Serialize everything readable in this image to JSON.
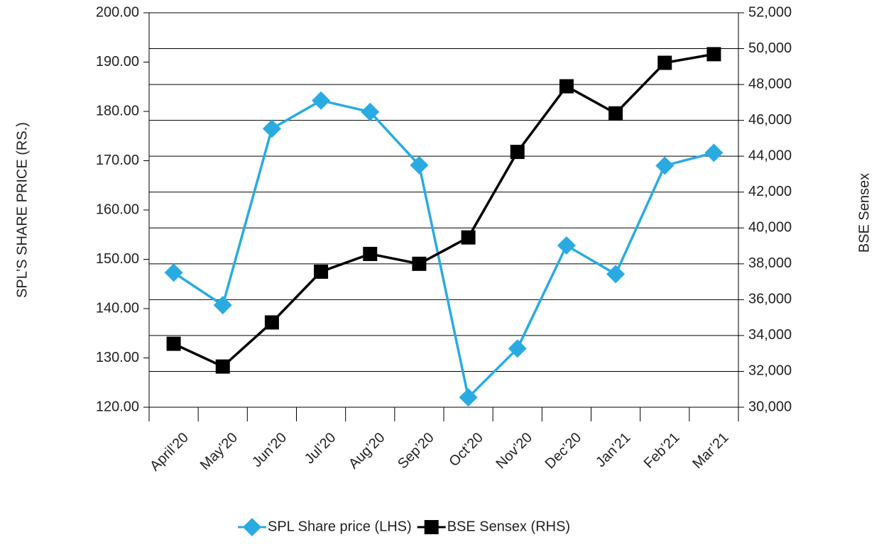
{
  "chart_data": {
    "type": "line",
    "categories": [
      "April’20",
      "May’20",
      "Jun’20",
      "Jul’20",
      "Aug’20",
      "Sep’20",
      "Oct’20",
      "Nov’20",
      "Dec’20",
      "Jan’21",
      "Feb’21",
      "Mar’21"
    ],
    "series": [
      {
        "name": "SPL Share price (LHS)",
        "color": "#29abe2",
        "marker": "diamond",
        "values": [
          147.3,
          140.7,
          176.5,
          182.2,
          179.9,
          169.1,
          122.0,
          131.9,
          152.8,
          147.0,
          169.0,
          171.6
        ]
      },
      {
        "name": "BSE Sensex (RHS)",
        "color": "#000000",
        "marker": "square",
        "axis": "y2",
        "values": [
          33540,
          32270,
          34730,
          37560,
          38550,
          38000,
          39470,
          44240,
          47900,
          46390,
          49210,
          49690
        ]
      }
    ],
    "ylabel": "SPL’S SHARE PRICE (RS.)",
    "y2label": "BSE Sensex",
    "ylim": [
      120,
      200
    ],
    "yticks": [
      {
        "value": 120,
        "label": "120.00"
      },
      {
        "value": 130,
        "label": "130.00"
      },
      {
        "value": 140,
        "label": "140.00"
      },
      {
        "value": 150,
        "label": "150.00"
      },
      {
        "value": 160,
        "label": "160.00"
      },
      {
        "value": 170,
        "label": "170.00"
      },
      {
        "value": 180,
        "label": "180.00"
      },
      {
        "value": 190,
        "label": "190.00"
      },
      {
        "value": 200,
        "label": "200.00"
      }
    ],
    "y2lim": [
      30000,
      52000
    ],
    "y2ticks": [
      {
        "value": 30000,
        "label": "30,000"
      },
      {
        "value": 32000,
        "label": "32,000"
      },
      {
        "value": 34000,
        "label": "34,000"
      },
      {
        "value": 36000,
        "label": "36,000"
      },
      {
        "value": 38000,
        "label": "38,000"
      },
      {
        "value": 40000,
        "label": "40,000"
      },
      {
        "value": 42000,
        "label": "42,000"
      },
      {
        "value": 44000,
        "label": "44,000"
      },
      {
        "value": 46000,
        "label": "46,000"
      },
      {
        "value": 48000,
        "label": "48,000"
      },
      {
        "value": 50000,
        "label": "50,000"
      },
      {
        "value": 52000,
        "label": "52,000"
      }
    ],
    "grid": true,
    "legend": "bottom"
  }
}
